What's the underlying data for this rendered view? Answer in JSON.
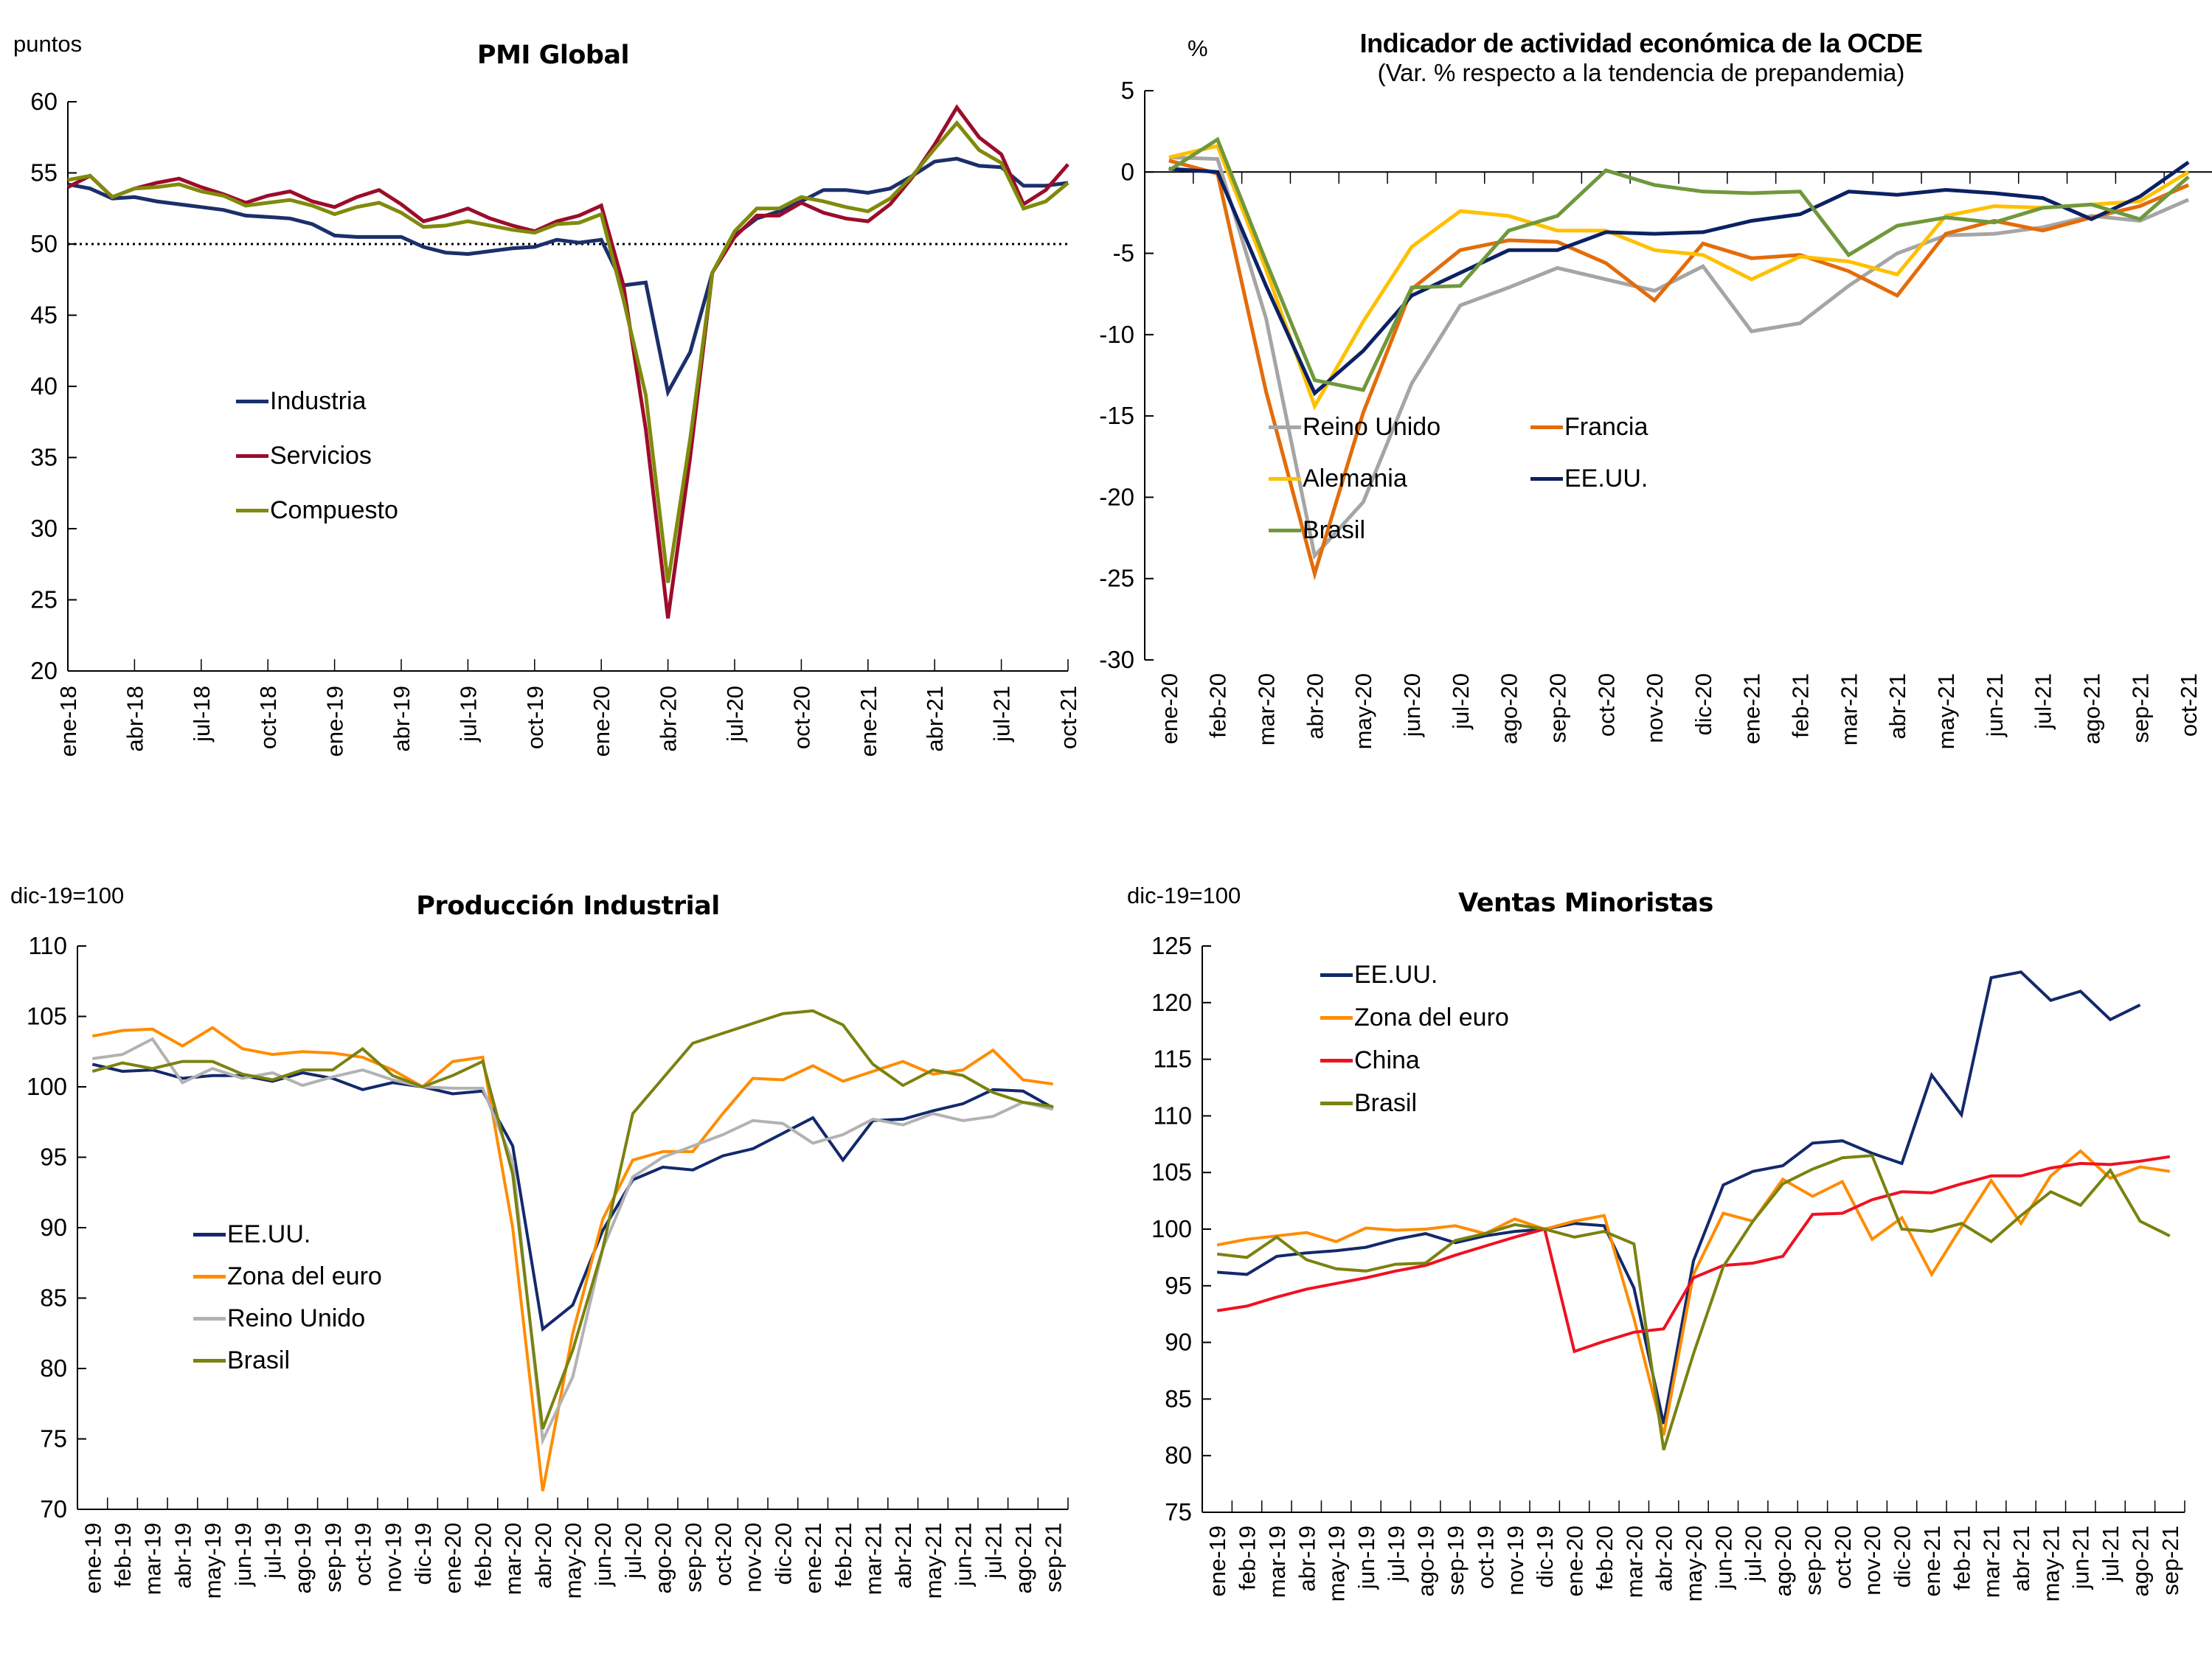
{
  "chart_data": [
    {
      "id": "pmi",
      "type": "line",
      "title": "PMI Global",
      "subtitle": "",
      "ylabel": "puntos",
      "xlabel": "",
      "ylim": [
        20,
        60
      ],
      "yticks": [
        20,
        25,
        30,
        35,
        40,
        45,
        50,
        55,
        60
      ],
      "reference_line": {
        "y": 50,
        "style": "dotted"
      },
      "x": [
        "ene-18",
        "feb-18",
        "mar-18",
        "abr-18",
        "may-18",
        "jun-18",
        "jul-18",
        "ago-18",
        "sep-18",
        "oct-18",
        "nov-18",
        "dic-18",
        "ene-19",
        "feb-19",
        "mar-19",
        "abr-19",
        "may-19",
        "jun-19",
        "jul-19",
        "ago-19",
        "sep-19",
        "oct-19",
        "nov-19",
        "dic-19",
        "ene-20",
        "feb-20",
        "mar-20",
        "abr-20",
        "may-20",
        "jun-20",
        "jul-20",
        "ago-20",
        "sep-20",
        "oct-20",
        "nov-20",
        "dic-20",
        "ene-21",
        "feb-21",
        "mar-21",
        "abr-21",
        "may-21",
        "jun-21",
        "jul-21",
        "ago-21",
        "sep-21",
        "oct-21"
      ],
      "xtick_labels": [
        "ene-18",
        "abr-18",
        "jul-18",
        "oct-18",
        "ene-19",
        "abr-19",
        "jul-19",
        "oct-19",
        "ene-20",
        "abr-20",
        "jul-20",
        "oct-20",
        "ene-21",
        "abr-21",
        "jul-21",
        "oct-21"
      ],
      "grid": false,
      "legend_position": "center-left",
      "series": [
        {
          "name": "Industria",
          "color": "#1b2f6b",
          "values": [
            54.2,
            53.9,
            53.2,
            53.3,
            53.0,
            52.8,
            52.6,
            52.4,
            52.0,
            51.9,
            51.8,
            51.4,
            50.6,
            50.5,
            50.5,
            50.5,
            49.8,
            49.4,
            49.3,
            49.5,
            49.7,
            49.8,
            50.3,
            50.1,
            50.3,
            47.1,
            47.3,
            39.6,
            42.4,
            48.0,
            50.6,
            51.8,
            52.3,
            53.0,
            53.8,
            53.8,
            53.6,
            53.9,
            54.8,
            55.8,
            56.0,
            55.5,
            55.4,
            54.1,
            54.1,
            54.3
          ]
        },
        {
          "name": "Servicios",
          "color": "#9c0c2b",
          "values": [
            54.0,
            54.8,
            53.3,
            53.9,
            54.3,
            54.6,
            54.0,
            53.5,
            52.9,
            53.4,
            53.7,
            53.0,
            52.6,
            53.3,
            53.8,
            52.8,
            51.6,
            52.0,
            52.5,
            51.8,
            51.3,
            50.9,
            51.6,
            52.0,
            52.7,
            47.1,
            37.0,
            23.7,
            35.0,
            48.0,
            50.5,
            52.0,
            52.0,
            52.9,
            52.2,
            51.8,
            51.6,
            52.8,
            54.7,
            57.0,
            59.6,
            57.5,
            56.3,
            52.8,
            53.8,
            55.6
          ]
        },
        {
          "name": "Compuesto",
          "color": "#808a0c",
          "values": [
            54.5,
            54.8,
            53.3,
            53.9,
            54.0,
            54.2,
            53.7,
            53.4,
            52.7,
            52.9,
            53.1,
            52.7,
            52.1,
            52.6,
            52.9,
            52.2,
            51.2,
            51.3,
            51.6,
            51.3,
            51.0,
            50.8,
            51.4,
            51.5,
            52.1,
            46.1,
            39.4,
            26.2,
            36.3,
            48.0,
            50.9,
            52.5,
            52.5,
            53.3,
            53.0,
            52.6,
            52.3,
            53.2,
            54.8,
            56.7,
            58.5,
            56.6,
            55.7,
            52.5,
            53.0,
            54.3
          ]
        }
      ]
    },
    {
      "id": "ocde",
      "type": "line",
      "title": "Indicador de actividad económica de la OCDE",
      "subtitle": "(Var. % respecto a la tendencia de prepandemia)",
      "ylabel": "%",
      "xlabel": "",
      "ylim": [
        -30,
        5
      ],
      "yticks": [
        -30,
        -25,
        -20,
        -15,
        -10,
        -5,
        0,
        5
      ],
      "x": [
        "ene-20",
        "feb-20",
        "mar-20",
        "abr-20",
        "may-20",
        "jun-20",
        "jul-20",
        "ago-20",
        "sep-20",
        "oct-20",
        "nov-20",
        "dic-20",
        "ene-21",
        "feb-21",
        "mar-21",
        "abr-21",
        "may-21",
        "jun-21",
        "jul-21",
        "ago-21",
        "sep-21",
        "oct-21"
      ],
      "xtick_labels": [
        "ene-20",
        "feb-20",
        "mar-20",
        "abr-20",
        "may-20",
        "jun-20",
        "jul-20",
        "ago-20",
        "sep-20",
        "oct-20",
        "nov-20",
        "dic-20",
        "ene-21",
        "feb-21",
        "mar-21",
        "abr-21",
        "may-21",
        "jun-21",
        "jul-21",
        "ago-21",
        "sep-21",
        "oct-21"
      ],
      "grid": false,
      "legend_position": "bottom-right",
      "series": [
        {
          "name": "Reino Unido",
          "color": "#a5a5a5",
          "values": [
            0.9,
            0.8,
            -9.0,
            -23.6,
            -20.3,
            -13.0,
            -8.2,
            -7.1,
            -5.9,
            -6.6,
            -7.3,
            -5.8,
            -9.8,
            -9.3,
            -7.0,
            -5.0,
            -3.9,
            -3.8,
            -3.4,
            -2.7,
            -3.0,
            -1.7
          ]
        },
        {
          "name": "Francia",
          "color": "#e36c0a",
          "values": [
            0.7,
            -0.1,
            -13.5,
            -24.7,
            -14.8,
            -7.2,
            -4.8,
            -4.2,
            -4.3,
            -5.6,
            -7.9,
            -4.4,
            -5.3,
            -5.1,
            -6.1,
            -7.6,
            -3.8,
            -3.0,
            -3.6,
            -2.8,
            -2.1,
            -0.8
          ]
        },
        {
          "name": "Alemania",
          "color": "#ffc000",
          "values": [
            0.9,
            1.6,
            -6.0,
            -14.4,
            -9.2,
            -4.6,
            -2.4,
            -2.7,
            -3.6,
            -3.6,
            -4.8,
            -5.1,
            -6.6,
            -5.2,
            -5.5,
            -6.3,
            -2.7,
            -2.1,
            -2.2,
            -2.0,
            -1.8,
            0.0
          ]
        },
        {
          "name": "EE.UU.",
          "color": "#0c2164",
          "values": [
            0.2,
            0.0,
            -7.0,
            -13.6,
            -11.0,
            -7.6,
            -6.2,
            -4.8,
            -4.8,
            -3.7,
            -3.8,
            -3.7,
            -3.0,
            -2.6,
            -1.2,
            -1.4,
            -1.1,
            -1.3,
            -1.6,
            -2.9,
            -1.5,
            0.6
          ]
        },
        {
          "name": "Brasil",
          "color": "#70983c",
          "values": [
            0.1,
            2.0,
            -5.5,
            -12.8,
            -13.4,
            -7.1,
            -7.0,
            -3.6,
            -2.7,
            0.1,
            -0.8,
            -1.2,
            -1.3,
            -1.2,
            -5.1,
            -3.3,
            -2.8,
            -3.1,
            -2.2,
            -2.0,
            -2.9,
            -0.3
          ]
        }
      ]
    },
    {
      "id": "prod",
      "type": "line",
      "title": "Producción Industrial",
      "subtitle": "",
      "ylabel": "dic-19=100",
      "xlabel": "",
      "ylim": [
        70,
        110
      ],
      "yticks": [
        70,
        75,
        80,
        85,
        90,
        95,
        100,
        105,
        110
      ],
      "x": [
        "ene-19",
        "feb-19",
        "mar-19",
        "abr-19",
        "may-19",
        "jun-19",
        "jul-19",
        "ago-19",
        "sep-19",
        "oct-19",
        "nov-19",
        "dic-19",
        "ene-20",
        "feb-20",
        "mar-20",
        "abr-20",
        "may-20",
        "jun-20",
        "jul-20",
        "ago-20",
        "sep-20",
        "oct-20",
        "nov-20",
        "dic-20",
        "ene-21",
        "feb-21",
        "mar-21",
        "abr-21",
        "may-21",
        "jun-21",
        "jul-21",
        "ago-21",
        "sep-21"
      ],
      "xtick_labels": [
        "ene-19",
        "feb-19",
        "mar-19",
        "abr-19",
        "may-19",
        "jun-19",
        "jul-19",
        "ago-19",
        "sep-19",
        "oct-19",
        "nov-19",
        "dic-19",
        "ene-20",
        "feb-20",
        "mar-20",
        "abr-20",
        "may-20",
        "jun-20",
        "jul-20",
        "ago-20",
        "sep-20",
        "oct-20",
        "nov-20",
        "dic-20",
        "ene-21",
        "feb-21",
        "mar-21",
        "abr-21",
        "may-21",
        "jun-21",
        "jul-21",
        "ago-21",
        "sep-21"
      ],
      "grid": false,
      "legend_position": "center-left",
      "series": [
        {
          "name": "EE.UU.",
          "color": "#13296b",
          "values": [
            101.6,
            101.1,
            101.2,
            100.6,
            100.8,
            100.8,
            100.4,
            101.0,
            100.6,
            99.8,
            100.3,
            100.0,
            99.5,
            99.7,
            95.8,
            82.8,
            84.5,
            89.8,
            93.4,
            94.3,
            94.1,
            95.1,
            95.6,
            96.7,
            97.8,
            94.8,
            97.6,
            97.7,
            98.3,
            98.8,
            99.8,
            99.7,
            98.5
          ]
        },
        {
          "name": "Zona del euro",
          "color": "#ff8c00",
          "values": [
            103.6,
            104.0,
            104.1,
            102.9,
            104.2,
            102.7,
            102.3,
            102.5,
            102.4,
            102.1,
            101.2,
            100.0,
            101.8,
            102.1,
            90.0,
            71.3,
            82.5,
            90.6,
            94.8,
            95.4,
            95.4,
            98.1,
            100.6,
            100.5,
            101.5,
            100.4,
            101.1,
            101.8,
            100.9,
            101.2,
            102.6,
            100.5,
            100.2
          ]
        },
        {
          "name": "Reino Unido",
          "color": "#b2b2b2",
          "values": [
            102.0,
            102.3,
            103.4,
            100.3,
            101.3,
            100.6,
            101.0,
            100.1,
            100.7,
            101.2,
            100.5,
            100.0,
            99.9,
            99.9,
            94.7,
            74.9,
            79.4,
            88.5,
            93.6,
            95.0,
            95.8,
            96.6,
            97.6,
            97.4,
            96.0,
            96.6,
            97.7,
            97.3,
            98.1,
            97.6,
            97.9,
            98.9,
            98.4
          ]
        },
        {
          "name": "Brasil",
          "color": "#7a8210",
          "values": [
            101.1,
            101.7,
            101.3,
            101.8,
            101.8,
            100.9,
            100.5,
            101.2,
            101.2,
            102.7,
            100.8,
            100.0,
            100.8,
            101.8,
            93.8,
            75.7,
            81.3,
            88.5,
            98.1,
            100.6,
            103.1,
            103.8,
            104.5,
            105.2,
            105.4,
            104.4,
            101.6,
            100.1,
            101.2,
            100.8,
            99.6,
            98.9,
            98.6
          ]
        }
      ]
    },
    {
      "id": "ventas",
      "type": "line",
      "title": "Ventas Minoristas",
      "subtitle": "",
      "ylabel": "dic-19=100",
      "xlabel": "",
      "ylim": [
        75,
        125
      ],
      "yticks": [
        75,
        80,
        85,
        90,
        95,
        100,
        105,
        110,
        115,
        120,
        125
      ],
      "x": [
        "ene-19",
        "feb-19",
        "mar-19",
        "abr-19",
        "may-19",
        "jun-19",
        "jul-19",
        "ago-19",
        "sep-19",
        "oct-19",
        "nov-19",
        "dic-19",
        "ene-20",
        "feb-20",
        "mar-20",
        "abr-20",
        "may-20",
        "jun-20",
        "jul-20",
        "ago-20",
        "sep-20",
        "oct-20",
        "nov-20",
        "dic-20",
        "ene-21",
        "feb-21",
        "mar-21",
        "abr-21",
        "may-21",
        "jun-21",
        "jul-21",
        "ago-21",
        "sep-21"
      ],
      "xtick_labels": [
        "ene-19",
        "feb-19",
        "mar-19",
        "abr-19",
        "may-19",
        "jun-19",
        "jul-19",
        "ago-19",
        "sep-19",
        "oct-19",
        "nov-19",
        "dic-19",
        "ene-20",
        "feb-20",
        "mar-20",
        "abr-20",
        "may-20",
        "jun-20",
        "jul-20",
        "ago-20",
        "sep-20",
        "oct-20",
        "nov-20",
        "dic-20",
        "ene-21",
        "feb-21",
        "mar-21",
        "abr-21",
        "may-21",
        "jun-21",
        "jul-21",
        "ago-21",
        "sep-21"
      ],
      "grid": false,
      "legend_position": "top-left",
      "series": [
        {
          "name": "EE.UU.",
          "color": "#13296b",
          "values": [
            96.2,
            96.0,
            97.6,
            97.9,
            98.1,
            98.4,
            99.1,
            99.6,
            98.8,
            99.4,
            99.8,
            100.0,
            100.5,
            100.3,
            94.8,
            82.8,
            97.2,
            103.9,
            105.1,
            105.6,
            107.6,
            107.8,
            106.7,
            105.8,
            113.6,
            110.1,
            122.2,
            122.7,
            120.2,
            121.0,
            118.5,
            119.8,
            null
          ]
        },
        {
          "name": "Zona del euro",
          "color": "#ff8c00",
          "values": [
            98.6,
            99.1,
            99.4,
            99.7,
            98.9,
            100.1,
            99.9,
            100.0,
            100.3,
            99.6,
            100.9,
            100.0,
            100.7,
            101.2,
            92.1,
            81.8,
            96.0,
            101.4,
            100.7,
            104.4,
            102.9,
            104.2,
            99.1,
            101.0,
            96.0,
            100.2,
            104.3,
            100.5,
            104.7,
            106.9,
            104.5,
            105.5,
            105.1
          ]
        },
        {
          "name": "China",
          "color": "#ee1122",
          "values": [
            92.8,
            93.2,
            94.0,
            94.7,
            95.2,
            95.7,
            96.3,
            96.8,
            97.7,
            98.5,
            99.3,
            100.0,
            89.2,
            90.1,
            90.9,
            91.2,
            95.7,
            96.8,
            97.0,
            97.6,
            101.3,
            101.4,
            102.6,
            103.3,
            103.2,
            104.0,
            104.7,
            104.7,
            105.4,
            105.8,
            105.7,
            106.0,
            106.4
          ]
        },
        {
          "name": "Brasil",
          "color": "#7a8210",
          "values": [
            97.8,
            97.5,
            99.3,
            97.3,
            96.5,
            96.3,
            96.9,
            97.0,
            99.0,
            99.6,
            100.4,
            100.0,
            99.3,
            99.8,
            98.7,
            80.5,
            89.0,
            96.7,
            100.7,
            104.0,
            105.3,
            106.3,
            106.5,
            100.0,
            99.8,
            100.5,
            98.9,
            101.2,
            103.3,
            102.1,
            105.2,
            100.7,
            99.4
          ]
        }
      ]
    }
  ]
}
